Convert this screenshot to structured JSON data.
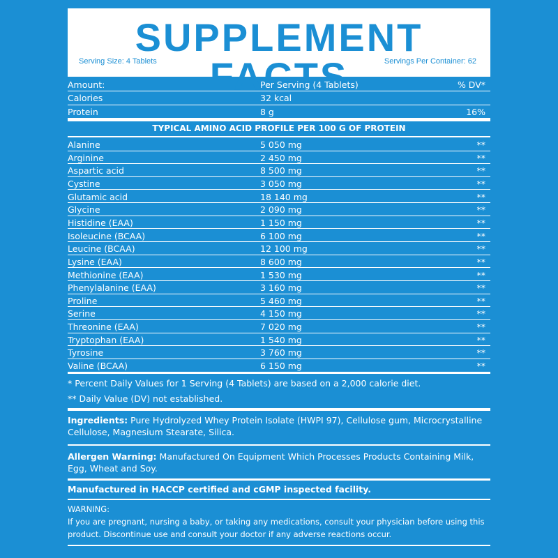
{
  "header": {
    "title": "SUPPLEMENT FACTS",
    "serving_size": "Serving Size: 4 Tablets",
    "servings_per_container": "Servings Per Container: 62"
  },
  "table": {
    "columns": [
      "Amount:",
      "Per Serving (4 Tablets)",
      "% DV*"
    ],
    "rows": [
      {
        "name": "Calories",
        "amount": "32 kcal"
      },
      {
        "name": "Protein",
        "amount": "8 g",
        "dv": "16%"
      }
    ]
  },
  "amino": {
    "title": "TYPICAL AMINO ACID PROFILE PER 100 G OF PROTEIN",
    "rows": [
      {
        "name": "Alanine",
        "amount": "5 050 mg",
        "dv": "**"
      },
      {
        "name": "Arginine",
        "amount": "2 450 mg",
        "dv": "**"
      },
      {
        "name": "Aspartic acid",
        "amount": "8 500 mg",
        "dv": "**"
      },
      {
        "name": "Cystine",
        "amount": "3 050 mg",
        "dv": "**"
      },
      {
        "name": "Glutamic acid",
        "amount": "18 140 mg",
        "dv": "**"
      },
      {
        "name": "Glycine",
        "amount": "2 090 mg",
        "dv": "**"
      },
      {
        "name": "Histidine (EAA)",
        "amount": "1 150 mg",
        "dv": "**"
      },
      {
        "name": "Isoleucine (BCAA)",
        "amount": "6 100 mg",
        "dv": "**"
      },
      {
        "name": "Leucine (BCAA)",
        "amount": "12 100 mg",
        "dv": "**"
      },
      {
        "name": "Lysine (EAA)",
        "amount": "8 600 mg",
        "dv": "**"
      },
      {
        "name": "Methionine (EAA)",
        "amount": "1 530 mg",
        "dv": "**"
      },
      {
        "name": "Phenylalanine (EAA)",
        "amount": "3 160 mg",
        "dv": "**"
      },
      {
        "name": "Proline",
        "amount": "5 460 mg",
        "dv": "**"
      },
      {
        "name": "Serine",
        "amount": "4 150 mg",
        "dv": "**"
      },
      {
        "name": "Threonine (EAA)",
        "amount": "7 020 mg",
        "dv": "**"
      },
      {
        "name": "Tryptophan (EAA)",
        "amount": "1 540 mg",
        "dv": "**"
      },
      {
        "name": "Tyrosine",
        "amount": "3 760 mg",
        "dv": "**"
      },
      {
        "name": "Valine (BCAA)",
        "amount": "6 150 mg",
        "dv": "**"
      }
    ]
  },
  "footnotes": [
    "* Percent Daily Values for 1 Serving (4 Tablets) are based on a 2,000 calorie diet.",
    "** Daily Value (DV) not established."
  ],
  "ingredients": {
    "label": "Ingredients:",
    "text": "Pure Hydrolyzed Whey Protein Isolate (HWPI 97), Cellulose gum, Microcrystalline Cellulose, Magnesium Stearate, Silica."
  },
  "allergen": {
    "label": "Allergen Warning:",
    "text": "Manufactured On Equipment Which Processes Products Containing Milk, Egg, Wheat and Soy."
  },
  "facility": "Manufactured in HACCP certified and cGMP inspected facility.",
  "warning": {
    "label": "WARNING:",
    "text": "If you are pregnant, nursing a baby, or taking any medications, consult your physician before using this product. Discontinue use and consult your doctor if any adverse reactions occur."
  }
}
